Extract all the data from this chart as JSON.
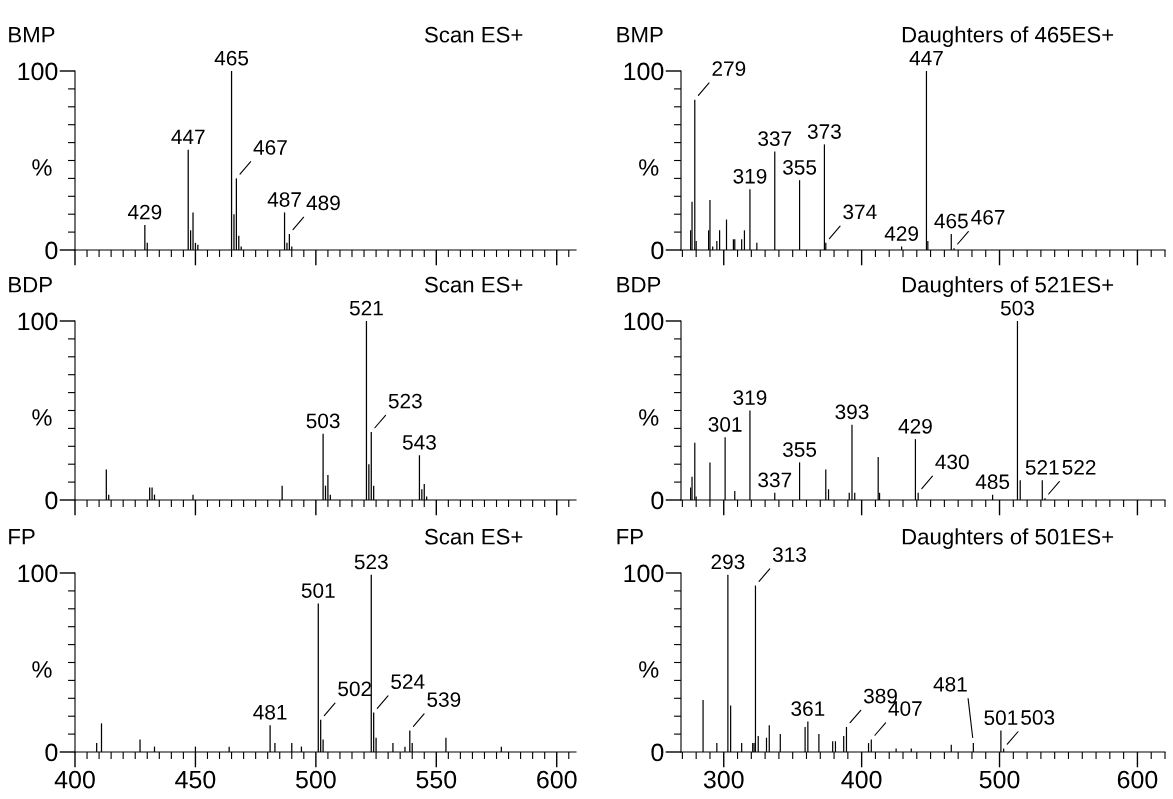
{
  "chart_data": [
    {
      "type": "bar",
      "title": "BMP",
      "subtitle": "Scan ES+",
      "ylabel": "%",
      "color": "#000000",
      "x": [
        429,
        430,
        447,
        448,
        449,
        450,
        451,
        465,
        466,
        467,
        468,
        469,
        487,
        488,
        489,
        490
      ],
      "values": [
        14,
        4,
        56,
        11,
        21,
        4,
        3,
        100,
        20,
        40,
        8,
        2,
        21,
        4,
        9,
        2
      ],
      "xlim": [
        400,
        608
      ],
      "xticks": [
        400,
        450,
        500,
        550,
        600
      ],
      "ylim": [
        0,
        100
      ],
      "yticks": [
        0,
        100
      ],
      "tick_labels": "y",
      "annotations": [
        {
          "text": "429",
          "x": 429,
          "y": 14
        },
        {
          "text": "447",
          "x": 447,
          "y": 56
        },
        {
          "text": "465",
          "x": 465,
          "y": 100
        },
        {
          "text": "467",
          "x": 467,
          "y": 40
        },
        {
          "text": "487",
          "x": 487,
          "y": 21
        },
        {
          "text": "489",
          "x": 489,
          "y": 9
        }
      ]
    },
    {
      "type": "bar",
      "title": "BMP",
      "subtitle": "Daughters of 465ES+",
      "ylabel": "%",
      "color": "#000000",
      "x": [
        276,
        277,
        279,
        280,
        289,
        290,
        292,
        295,
        297,
        302,
        307,
        308,
        313,
        315,
        319,
        324,
        337,
        355,
        373,
        374,
        429,
        447,
        448,
        465,
        467
      ],
      "values": [
        11,
        27,
        84,
        5,
        11,
        28,
        2,
        5,
        11,
        17,
        6,
        6,
        6,
        11,
        34,
        4,
        55,
        39,
        59,
        4,
        2,
        100,
        5,
        9,
        1
      ],
      "xlim": [
        269,
        620
      ],
      "xticks": [
        300,
        400,
        500,
        600
      ],
      "ylim": [
        0,
        100
      ],
      "yticks": [
        0,
        100
      ],
      "tick_labels": "y",
      "annotations": [
        {
          "text": "279",
          "x": 279,
          "y": 84
        },
        {
          "text": "319",
          "x": 319,
          "y": 34
        },
        {
          "text": "337",
          "x": 337,
          "y": 55
        },
        {
          "text": "355",
          "x": 355,
          "y": 39
        },
        {
          "text": "373",
          "x": 373,
          "y": 59
        },
        {
          "text": "374",
          "x": 374,
          "y": 4
        },
        {
          "text": "429",
          "x": 429,
          "y": 2
        },
        {
          "text": "447",
          "x": 447,
          "y": 100
        },
        {
          "text": "465",
          "x": 465,
          "y": 9
        },
        {
          "text": "467",
          "x": 467,
          "y": 1
        }
      ]
    },
    {
      "type": "bar",
      "title": "BDP",
      "subtitle": "Scan ES+",
      "ylabel": "%",
      "color": "#000000",
      "x": [
        413,
        414,
        431,
        432,
        433,
        449,
        486,
        503,
        504,
        505,
        506,
        521,
        522,
        523,
        524,
        543,
        544,
        545,
        546
      ],
      "values": [
        17,
        3,
        7,
        7,
        3,
        3,
        8,
        37,
        8,
        14,
        3,
        100,
        20,
        38,
        8,
        25,
        6,
        9,
        2
      ],
      "xlim": [
        400,
        608
      ],
      "xticks": [
        400,
        450,
        500,
        550,
        600
      ],
      "ylim": [
        0,
        100
      ],
      "yticks": [
        0,
        100
      ],
      "tick_labels": "y",
      "annotations": [
        {
          "text": "503",
          "x": 503,
          "y": 37
        },
        {
          "text": "521",
          "x": 521,
          "y": 100
        },
        {
          "text": "523",
          "x": 523,
          "y": 38
        },
        {
          "text": "543",
          "x": 543,
          "y": 25
        }
      ]
    },
    {
      "type": "bar",
      "title": "BDP",
      "subtitle": "Daughters of 521ES+",
      "ylabel": "%",
      "color": "#000000",
      "x": [
        276,
        277,
        279,
        280,
        290,
        301,
        308,
        319,
        337,
        355,
        374,
        376,
        391,
        393,
        395,
        412,
        413,
        439,
        441,
        495,
        513,
        515,
        531,
        533
      ],
      "values": [
        7,
        13,
        32,
        2,
        21,
        35,
        5,
        50,
        4,
        21,
        17,
        6,
        4,
        42,
        4,
        24,
        4,
        34,
        4,
        3,
        100,
        11,
        11,
        1
      ],
      "xlim": [
        269,
        620
      ],
      "xticks": [
        300,
        400,
        500,
        600
      ],
      "ylim": [
        0,
        100
      ],
      "yticks": [
        0,
        100
      ],
      "tick_labels": "y",
      "annotations": [
        {
          "text": "301",
          "x": 301,
          "y": 35
        },
        {
          "text": "319",
          "x": 319,
          "y": 50
        },
        {
          "text": "337",
          "x": 337,
          "y": 4
        },
        {
          "text": "355",
          "x": 355,
          "y": 21
        },
        {
          "text": "393",
          "x": 393,
          "y": 42
        },
        {
          "text": "429",
          "x": 439,
          "y": 34
        },
        {
          "text": "430",
          "x": 441,
          "y": 4
        },
        {
          "text": "485",
          "x": 495,
          "y": 3
        },
        {
          "text": "503",
          "x": 513,
          "y": 100
        },
        {
          "text": "521",
          "x": 531,
          "y": 11
        },
        {
          "text": "522",
          "x": 533,
          "y": 1
        }
      ]
    },
    {
      "type": "bar",
      "title": "FP",
      "subtitle": "Scan ES+",
      "ylabel": "%",
      "color": "#000000",
      "x": [
        409,
        411,
        427,
        433,
        450,
        464,
        481,
        483,
        490,
        494,
        501,
        502,
        503,
        523,
        524,
        525,
        532,
        537,
        539,
        540,
        554,
        577
      ],
      "values": [
        5,
        16,
        7,
        3,
        3,
        3,
        15,
        5,
        5,
        3,
        83,
        18,
        7,
        99,
        22,
        8,
        5,
        3,
        12,
        5,
        8,
        3
      ],
      "xlim": [
        400,
        608
      ],
      "xticks": [
        400,
        450,
        500,
        550,
        600
      ],
      "ylim": [
        0,
        100
      ],
      "yticks": [
        0,
        100
      ],
      "annotations": [
        {
          "text": "481",
          "x": 481,
          "y": 15
        },
        {
          "text": "501",
          "x": 501,
          "y": 83
        },
        {
          "text": "502",
          "x": 502,
          "y": 18
        },
        {
          "text": "523",
          "x": 523,
          "y": 99
        },
        {
          "text": "524",
          "x": 524,
          "y": 22
        },
        {
          "text": "539",
          "x": 539,
          "y": 12
        }
      ]
    },
    {
      "type": "bar",
      "title": "FP",
      "subtitle": "Daughters of 501ES+",
      "ylabel": "%",
      "color": "#000000",
      "x": [
        285,
        295,
        303,
        305,
        313,
        321,
        322,
        323,
        325,
        331,
        333,
        341,
        359,
        361,
        369,
        379,
        381,
        387,
        389,
        405,
        407,
        425,
        436,
        465,
        481,
        501,
        503
      ],
      "values": [
        29,
        5,
        99,
        26,
        5,
        5,
        5,
        93,
        9,
        8,
        15,
        10,
        14,
        17,
        10,
        6,
        6,
        9,
        14,
        5,
        7,
        2,
        2,
        4,
        5,
        12,
        2
      ],
      "xlim": [
        269,
        620
      ],
      "xticks": [
        300,
        400,
        500,
        600
      ],
      "ylim": [
        0,
        100
      ],
      "yticks": [
        0,
        100
      ],
      "annotations": [
        {
          "text": "293",
          "x": 303,
          "y": 99
        },
        {
          "text": "313",
          "x": 323,
          "y": 93
        },
        {
          "text": "361",
          "x": 361,
          "y": 17
        },
        {
          "text": "389",
          "x": 389,
          "y": 14
        },
        {
          "text": "407",
          "x": 407,
          "y": 7
        },
        {
          "text": "481",
          "x": 481,
          "y": 5
        },
        {
          "text": "501",
          "x": 501,
          "y": 12
        },
        {
          "text": "503",
          "x": 503,
          "y": 2
        }
      ]
    }
  ]
}
